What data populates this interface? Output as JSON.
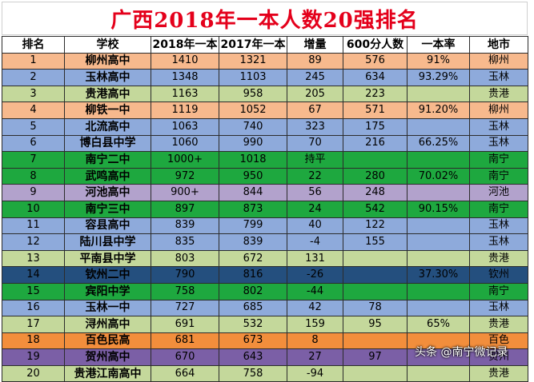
{
  "title": "广西2018年一本人数20强排名",
  "headers": [
    "排名",
    "学校",
    "2018年一本",
    "2017年一本",
    "增量",
    "600分人数",
    "一本率",
    "地市"
  ],
  "rows": [
    {
      "rank": "1",
      "school": "柳州高中",
      "y2018": "1410",
      "y2017": "1321",
      "increase": "89",
      "over600": "576",
      "rate": "91%",
      "city": "柳州",
      "bg": "#f7b98d",
      "fg": "#000000"
    },
    {
      "rank": "2",
      "school": "玉林高中",
      "y2018": "1348",
      "y2017": "1103",
      "increase": "245",
      "over600": "634",
      "rate": "93.29%",
      "city": "玉林",
      "bg": "#8eaadb",
      "fg": "#000000"
    },
    {
      "rank": "3",
      "school": "贵港高中",
      "y2018": "1163",
      "y2017": "958",
      "increase": "205",
      "over600": "223",
      "rate": "",
      "city": "贵港",
      "bg": "#c4d89b",
      "fg": "#000000"
    },
    {
      "rank": "4",
      "school": "柳铁一中",
      "y2018": "1119",
      "y2017": "1052",
      "increase": "67",
      "over600": "571",
      "rate": "91.20%",
      "city": "柳州",
      "bg": "#f7b98d",
      "fg": "#000000"
    },
    {
      "rank": "5",
      "school": "北流高中",
      "y2018": "1063",
      "y2017": "740",
      "increase": "323",
      "over600": "175",
      "rate": "",
      "city": "玉林",
      "bg": "#8eaadb",
      "fg": "#000000"
    },
    {
      "rank": "6",
      "school": "博白县中学",
      "y2018": "1060",
      "y2017": "990",
      "increase": "70",
      "over600": "216",
      "rate": "66.25%",
      "city": "玉林",
      "bg": "#8eaadb",
      "fg": "#000000"
    },
    {
      "rank": "7",
      "school": "南宁二中",
      "y2018": "1000+",
      "y2017": "1018",
      "increase": "持平",
      "over600": "",
      "rate": "",
      "city": "南宁",
      "bg": "#1ea83f",
      "fg": "#000000"
    },
    {
      "rank": "8",
      "school": "武鸣高中",
      "y2018": "972",
      "y2017": "950",
      "increase": "22",
      "over600": "280",
      "rate": "70.02%",
      "city": "南宁",
      "bg": "#1ea83f",
      "fg": "#000000"
    },
    {
      "rank": "9",
      "school": "河池高中",
      "y2018": "900+",
      "y2017": "844",
      "increase": "56",
      "over600": "248",
      "rate": "",
      "city": "河池",
      "bg": "#b2a2cc",
      "fg": "#000000"
    },
    {
      "rank": "10",
      "school": "南宁三中",
      "y2018": "897",
      "y2017": "873",
      "increase": "24",
      "over600": "542",
      "rate": "90.15%",
      "city": "南宁",
      "bg": "#1ea83f",
      "fg": "#000000"
    },
    {
      "rank": "11",
      "school": "容县高中",
      "y2018": "839",
      "y2017": "799",
      "increase": "40",
      "over600": "122",
      "rate": "",
      "city": "玉林",
      "bg": "#8eaadb",
      "fg": "#000000"
    },
    {
      "rank": "12",
      "school": "陆川县中学",
      "y2018": "835",
      "y2017": "839",
      "increase": "-4",
      "over600": "155",
      "rate": "",
      "city": "玉林",
      "bg": "#8eaadb",
      "fg": "#000000"
    },
    {
      "rank": "13",
      "school": "平南县中学",
      "y2018": "803",
      "y2017": "672",
      "increase": "131",
      "over600": "",
      "rate": "",
      "city": "贵港",
      "bg": "#c4d89b",
      "fg": "#000000"
    },
    {
      "rank": "14",
      "school": "钦州二中",
      "y2018": "790",
      "y2017": "816",
      "increase": "-26",
      "over600": "",
      "rate": "37.30%",
      "city": "钦州",
      "bg": "#244f7e",
      "fg": "#000000"
    },
    {
      "rank": "15",
      "school": "宾阳中学",
      "y2018": "758",
      "y2017": "802",
      "increase": "-44",
      "over600": "",
      "rate": "",
      "city": "南宁",
      "bg": "#1ea83f",
      "fg": "#000000"
    },
    {
      "rank": "16",
      "school": "玉林一中",
      "y2018": "727",
      "y2017": "685",
      "increase": "42",
      "over600": "78",
      "rate": "",
      "city": "玉林",
      "bg": "#8eaadb",
      "fg": "#000000"
    },
    {
      "rank": "17",
      "school": "浔州高中",
      "y2018": "691",
      "y2017": "532",
      "increase": "159",
      "over600": "95",
      "rate": "65%",
      "city": "贵港",
      "bg": "#c4d89b",
      "fg": "#000000"
    },
    {
      "rank": "18",
      "school": "百色民高",
      "y2018": "681",
      "y2017": "673",
      "increase": "8",
      "over600": "",
      "rate": "",
      "city": "百色",
      "bg": "#f28e3c",
      "fg": "#000000"
    },
    {
      "rank": "19",
      "school": "贺州高中",
      "y2018": "670",
      "y2017": "643",
      "increase": "27",
      "over600": "97",
      "rate": "",
      "city": "贺州",
      "bg": "#7b5fa6",
      "fg": "#000000"
    },
    {
      "rank": "20",
      "school": "贵港江南高中",
      "y2018": "664",
      "y2017": "758",
      "increase": "-94",
      "over600": "",
      "rate": "",
      "city": "贵港",
      "bg": "#c4d89b",
      "fg": "#000000"
    }
  ],
  "watermark": "头条 @南宁微记录"
}
